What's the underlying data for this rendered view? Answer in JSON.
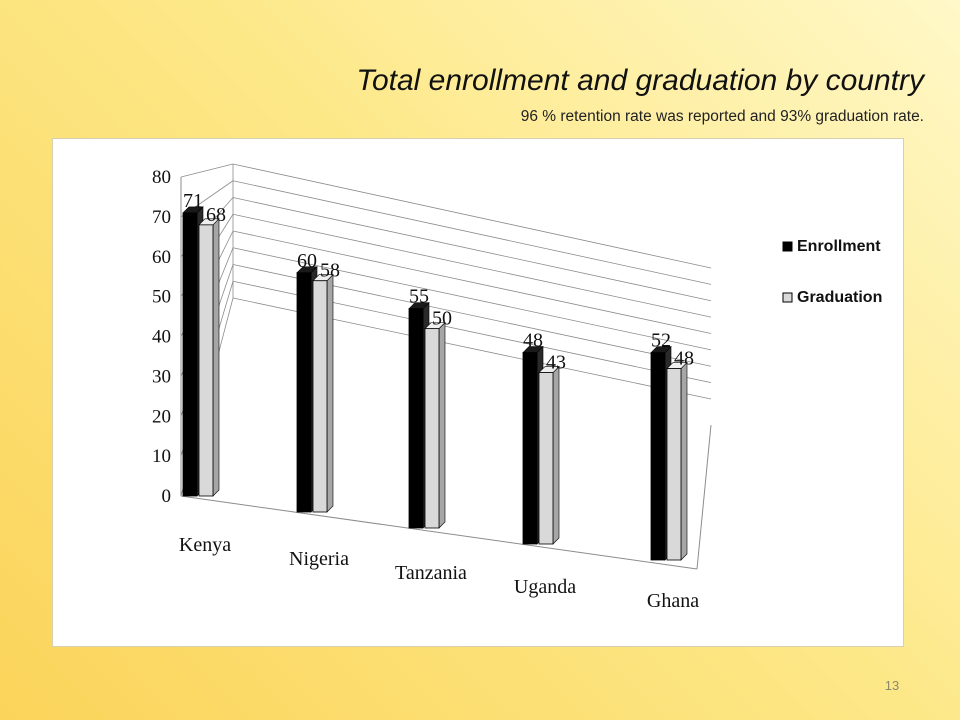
{
  "slide": {
    "title": "Total enrollment and graduation by country",
    "subtitle": "96 % retention rate was reported  and 93% graduation rate.",
    "page_number": "13"
  },
  "chart_data": {
    "type": "bar",
    "style": "3d-clustered-column",
    "categories": [
      "Kenya",
      "Nigeria",
      "Tanzania",
      "Uganda",
      "Ghana"
    ],
    "series": [
      {
        "name": "Enrollment",
        "values": [
          71,
          60,
          55,
          48,
          52
        ],
        "color": "#000000"
      },
      {
        "name": "Graduation",
        "values": [
          68,
          58,
          50,
          43,
          48
        ],
        "color": "#d9d9d9"
      }
    ],
    "y_ticks": [
      "0",
      "10",
      "20",
      "30",
      "40",
      "50",
      "60",
      "70",
      "80"
    ],
    "ylim": [
      0,
      80
    ],
    "grid": true,
    "legend_position": "right"
  }
}
